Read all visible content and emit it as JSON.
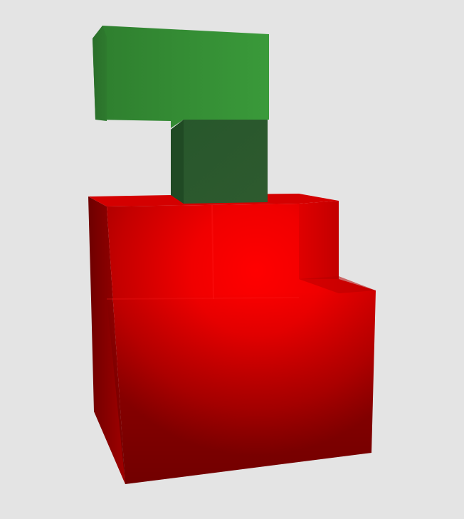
{
  "scene": {
    "subject": "voxel-apple",
    "background_color": "#e4e4e4",
    "colors": {
      "apple_red": "#ff0000",
      "apple_red_dark": "#7a0000",
      "stem_green_dark": "#2a5a2a",
      "leaf_green": "#349834"
    },
    "icons": [
      "apple-body",
      "apple-stem",
      "apple-leaf"
    ]
  }
}
